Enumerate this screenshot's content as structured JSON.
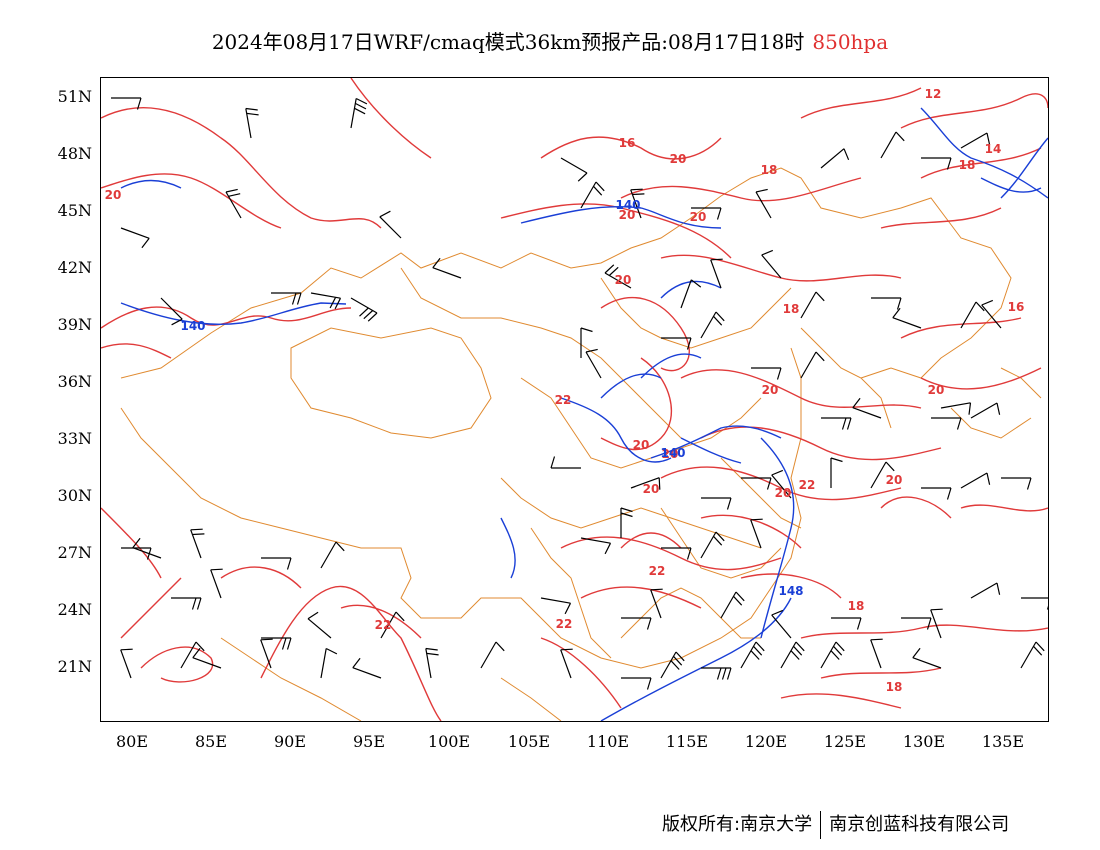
{
  "header": {
    "title": "2024年08月17日WRF/cmaq模式36km预报产品:08月17日18时",
    "level": "850hpa",
    "level_color": "#e03030"
  },
  "map": {
    "lat_labels": [
      "51N",
      "48N",
      "45N",
      "42N",
      "39N",
      "36N",
      "33N",
      "30N",
      "27N",
      "24N",
      "21N"
    ],
    "lon_labels": [
      "80E",
      "85E",
      "90E",
      "95E",
      "100E",
      "105E",
      "110E",
      "115E",
      "120E",
      "125E",
      "130E",
      "135E"
    ],
    "temperature_contour_color": "#e03a3a",
    "geopotential_contour_color": "#1a3fd6",
    "border_color": "#e08a30",
    "wind_barb_color": "#000000",
    "temperature_labels": [
      "12",
      "14",
      "16",
      "18",
      "18",
      "20",
      "20",
      "20",
      "20",
      "20",
      "20",
      "20",
      "20",
      "20",
      "20",
      "20",
      "20",
      "22",
      "22",
      "22",
      "22",
      "22",
      "18",
      "18",
      "16",
      "18"
    ],
    "geopotential_labels": [
      "140",
      "140",
      "140",
      "148"
    ]
  },
  "footer": {
    "copyright_left": "版权所有:南京大学",
    "copyright_right": "南京创蓝科技有限公司"
  }
}
